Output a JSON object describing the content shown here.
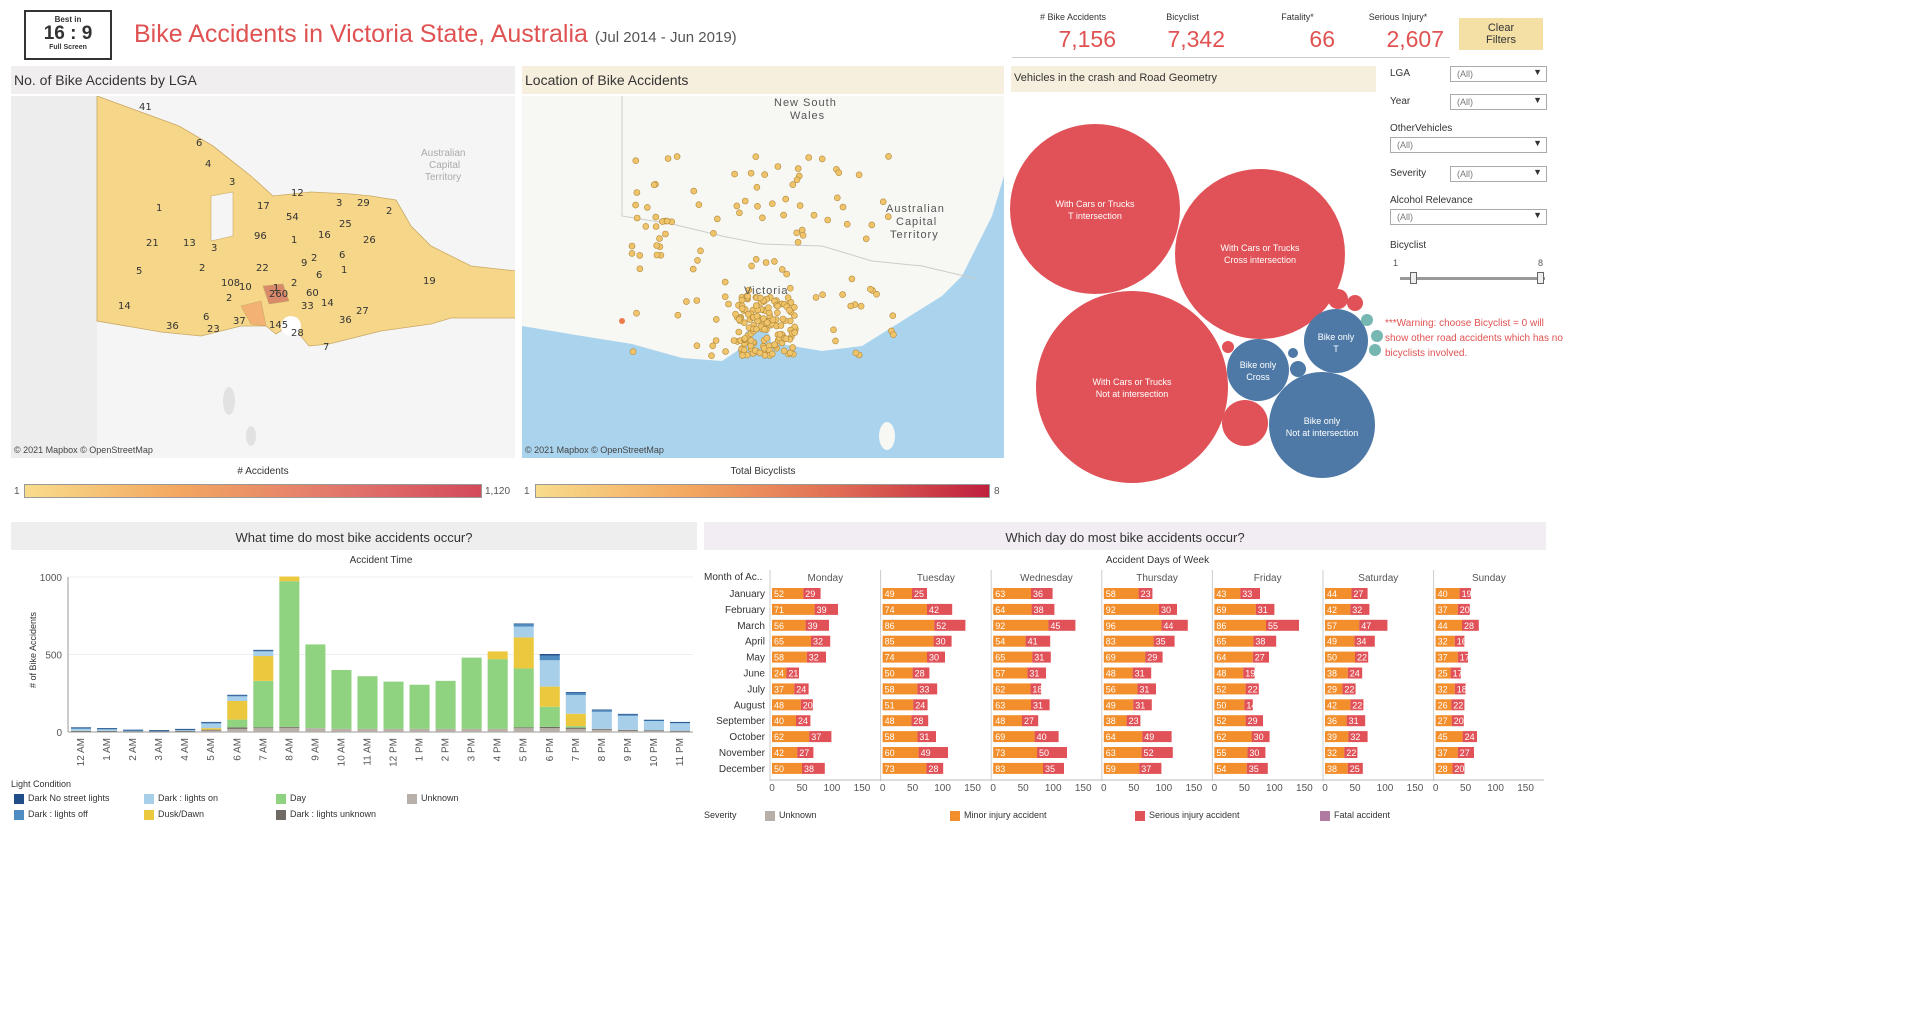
{
  "badge": {
    "line1": "Best in",
    "line2": "16 : 9",
    "line3": "Full Screen"
  },
  "title": {
    "main": "Bike Accidents in Victoria State, Australia",
    "period": "(Jul 2014 - Jun 2019)"
  },
  "kpis": [
    {
      "label": "# Bike Accidents",
      "value": "7,156"
    },
    {
      "label": "Bicyclist",
      "value": "7,342"
    },
    {
      "label": "Fatality*",
      "value": "66"
    },
    {
      "label": "Serious Injury*",
      "value": "2,607"
    }
  ],
  "clear_filters": "Clear Filters",
  "lga_map": {
    "title": "No. of Bike Accidents by LGA",
    "attribution": "© 2021 Mapbox  © OpenStreetMap",
    "labels": [
      "41",
      "6",
      "4",
      "3",
      "1",
      "17",
      "12",
      "54",
      "3",
      "29",
      "2",
      "21",
      "13",
      "96",
      "1",
      "16",
      "25",
      "26",
      "6",
      "2",
      "3",
      "22",
      "9",
      "6",
      "1",
      "19",
      "14",
      "108",
      "10",
      "2",
      "260",
      "60",
      "14",
      "2",
      "33",
      "36",
      "27",
      "36",
      "6",
      "23",
      "37",
      "145",
      "28",
      "7",
      "1",
      "5",
      "2"
    ],
    "legend_title": "# Accidents",
    "legend_min": "1",
    "legend_max": "1,120",
    "place_labels": [
      "Australian",
      "Capital",
      "Territory"
    ]
  },
  "loc_map": {
    "title": "Location of Bike Accidents",
    "attribution": "© 2021 Mapbox  © OpenStreetMap",
    "nsw_1": "New South",
    "nsw_2": "Wales",
    "act_1": "Australian",
    "act_2": "Capital",
    "act_3": "Territory",
    "vic": "Victoria",
    "legend_title": "Total Bicyclists",
    "legend_min": "1",
    "legend_max": "8"
  },
  "bubbles": {
    "title": "Vehicles in the crash and Road Geometry",
    "items": [
      {
        "l1": "With Cars or Trucks",
        "l2": "T intersection"
      },
      {
        "l1": "With Cars or Trucks",
        "l2": "Cross intersection"
      },
      {
        "l1": "With Cars or Trucks",
        "l2": "Not at intersection"
      },
      {
        "l1": "Bike only",
        "l2": "T"
      },
      {
        "l1": "Bike only",
        "l2": "Cross"
      },
      {
        "l1": "Bike only",
        "l2": "Not at intersection"
      }
    ],
    "colors": {
      "cars": "#e05257",
      "bike": "#4e79a7",
      "other": "#76b7b2"
    }
  },
  "filters": {
    "lga": {
      "label": "LGA",
      "value": "(All)"
    },
    "year": {
      "label": "Year",
      "value": "(All)"
    },
    "other": {
      "label": "OtherVehicles",
      "value": "(All)"
    },
    "severity": {
      "label": "Severity",
      "value": "(All)"
    },
    "alcohol": {
      "label": "Alcohol Relevance",
      "value": "(All)"
    },
    "bicyclist": {
      "label": "Bicyclist",
      "min": "1",
      "max": "8"
    }
  },
  "warning": "***Warning: choose Bicyclist = 0 will show other road accidents  which has no bicyclists involved.",
  "time_chart": {
    "section_title": "What time do most bike accidents occur?",
    "chart_title": "Accident Time",
    "ylabel": "# of Bike Accidents",
    "yticks": [
      "0",
      "500",
      "1000"
    ],
    "hours": [
      "12 AM",
      "1 AM",
      "2 AM",
      "3 AM",
      "4 AM",
      "5 AM",
      "6 AM",
      "7 AM",
      "8 AM",
      "9 AM",
      "10 AM",
      "11 AM",
      "12 PM",
      "1 PM",
      "2 PM",
      "3 PM",
      "4 PM",
      "5 PM",
      "6 PM",
      "7 PM",
      "8 PM",
      "9 PM",
      "10 PM",
      "11 PM"
    ],
    "legend_title": "Light Condition",
    "legend": [
      {
        "name": "Dark No street lights",
        "color": "#1f4e89"
      },
      {
        "name": "Dark : lights off",
        "color": "#4e8cc2"
      },
      {
        "name": "Dark : lights on",
        "color": "#a7cfe9"
      },
      {
        "name": "Dusk/Dawn",
        "color": "#ecc83f"
      },
      {
        "name": "Day",
        "color": "#8fd27f"
      },
      {
        "name": "Dark : lights unknown",
        "color": "#6f6a63"
      },
      {
        "name": "Unknown",
        "color": "#b8b0a8"
      }
    ]
  },
  "chart_data": {
    "type": "bar",
    "title": "Accident Time",
    "ylabel": "# of Bike Accidents",
    "ylim": [
      0,
      1000
    ],
    "categories": [
      "12 AM",
      "1 AM",
      "2 AM",
      "3 AM",
      "4 AM",
      "5 AM",
      "6 AM",
      "7 AM",
      "8 AM",
      "9 AM",
      "10 AM",
      "11 AM",
      "12 PM",
      "1 PM",
      "2 PM",
      "3 PM",
      "4 PM",
      "5 PM",
      "6 PM",
      "7 PM",
      "8 PM",
      "9 PM",
      "10 PM",
      "11 PM"
    ],
    "series": [
      {
        "name": "Unknown",
        "values": [
          5,
          5,
          2,
          2,
          5,
          10,
          20,
          25,
          30,
          25,
          20,
          20,
          20,
          20,
          20,
          20,
          20,
          25,
          25,
          20,
          15,
          10,
          8,
          6
        ]
      },
      {
        "name": "Dark : lights unknown",
        "values": [
          2,
          2,
          1,
          1,
          2,
          5,
          10,
          5,
          3,
          0,
          0,
          0,
          0,
          0,
          0,
          0,
          0,
          5,
          8,
          8,
          5,
          4,
          3,
          2
        ]
      },
      {
        "name": "Day",
        "values": [
          0,
          0,
          0,
          0,
          0,
          0,
          50,
          300,
          940,
          540,
          380,
          340,
          305,
          285,
          310,
          460,
          450,
          380,
          130,
          10,
          0,
          0,
          0,
          0
        ]
      },
      {
        "name": "Dusk/Dawn",
        "values": [
          0,
          0,
          0,
          0,
          0,
          10,
          120,
          160,
          30,
          0,
          0,
          0,
          0,
          0,
          0,
          0,
          50,
          200,
          130,
          80,
          0,
          0,
          0,
          0
        ]
      },
      {
        "name": "Dark : lights on",
        "values": [
          15,
          12,
          8,
          6,
          8,
          30,
          30,
          30,
          0,
          0,
          0,
          0,
          0,
          0,
          0,
          0,
          0,
          70,
          170,
          120,
          110,
          90,
          60,
          50
        ]
      },
      {
        "name": "Dark : lights off",
        "values": [
          3,
          3,
          2,
          1,
          2,
          5,
          5,
          5,
          0,
          0,
          0,
          0,
          0,
          0,
          0,
          0,
          0,
          15,
          30,
          15,
          10,
          8,
          5,
          4
        ]
      },
      {
        "name": "Dark No street lights",
        "values": [
          5,
          3,
          2,
          2,
          3,
          5,
          5,
          5,
          0,
          0,
          0,
          0,
          0,
          0,
          0,
          0,
          0,
          5,
          10,
          5,
          5,
          5,
          3,
          3
        ]
      }
    ]
  },
  "day_chart": {
    "section_title": "Which day do most bike accidents occur?",
    "chart_title": "Accident Days of Week",
    "row_header": "Month of Ac..",
    "days": [
      "Monday",
      "Tuesday",
      "Wednesday",
      "Thursday",
      "Friday",
      "Saturday",
      "Sunday"
    ],
    "months": [
      "January",
      "February",
      "March",
      "April",
      "May",
      "June",
      "July",
      "August",
      "September",
      "October",
      "November",
      "December"
    ],
    "axis_ticks": [
      "0",
      "50",
      "100",
      "150"
    ],
    "minor": [
      [
        52,
        71,
        56,
        65,
        58,
        24,
        37,
        48,
        40,
        62,
        42,
        50
      ],
      [
        49,
        74,
        86,
        85,
        74,
        50,
        58,
        51,
        48,
        58,
        60,
        73
      ],
      [
        63,
        64,
        92,
        54,
        65,
        57,
        62,
        63,
        48,
        69,
        73,
        83
      ],
      [
        58,
        92,
        96,
        83,
        69,
        48,
        56,
        49,
        38,
        64,
        63,
        59
      ],
      [
        43,
        69,
        86,
        65,
        64,
        48,
        52,
        50,
        52,
        62,
        55,
        54
      ],
      [
        44,
        42,
        57,
        49,
        50,
        38,
        29,
        42,
        36,
        39,
        32,
        38
      ],
      [
        40,
        37,
        44,
        32,
        37,
        25,
        32,
        26,
        27,
        45,
        37,
        28
      ]
    ],
    "serious": [
      [
        29,
        39,
        39,
        32,
        32,
        21,
        24,
        20,
        24,
        37,
        27,
        38
      ],
      [
        25,
        42,
        52,
        30,
        30,
        28,
        33,
        24,
        28,
        31,
        49,
        28
      ],
      [
        36,
        38,
        45,
        41,
        31,
        31,
        18,
        31,
        27,
        40,
        50,
        35
      ],
      [
        23,
        30,
        44,
        35,
        29,
        31,
        31,
        31,
        23,
        49,
        52,
        37
      ],
      [
        33,
        31,
        55,
        38,
        27,
        19,
        22,
        14,
        29,
        30,
        30,
        35
      ],
      [
        27,
        32,
        47,
        34,
        22,
        24,
        22,
        22,
        31,
        32,
        22,
        25
      ],
      [
        19,
        20,
        28,
        16,
        17,
        17,
        18,
        22,
        20,
        24,
        27,
        20
      ]
    ],
    "legend_title": "Severity",
    "legend": [
      {
        "name": "Unknown",
        "color": "#b8b0a8"
      },
      {
        "name": "Minor injury accident",
        "color": "#f28e2b"
      },
      {
        "name": "Serious injury accident",
        "color": "#e05257"
      },
      {
        "name": "Fatal accident",
        "color": "#b07aa1"
      }
    ]
  }
}
